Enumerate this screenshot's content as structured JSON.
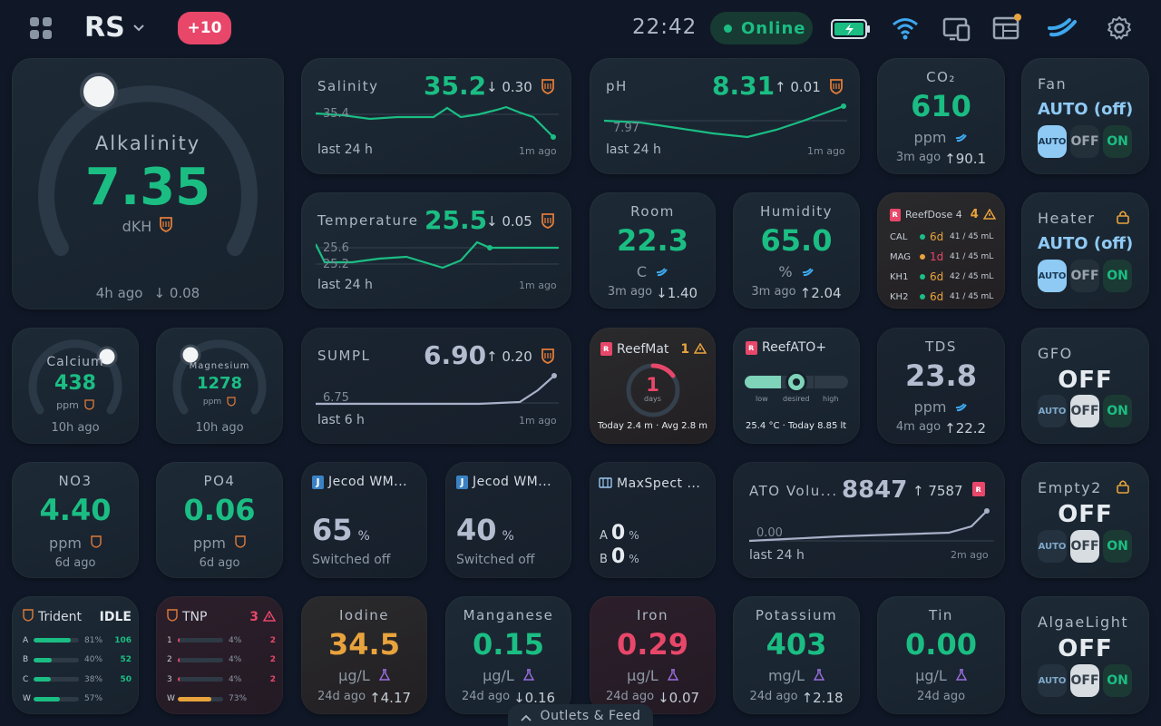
{
  "header": {
    "brand": "RS",
    "badge": "+10",
    "time": "22:42",
    "status": "Online"
  },
  "alk": {
    "label": "Alkalinity",
    "value": "7.35",
    "unit": "dKH",
    "ago": "4h ago",
    "delta": "0.08",
    "gauge_fraction": 0.03
  },
  "salinity": {
    "label": "Salinity",
    "value": "35.2",
    "delta": "0.30",
    "ref": "35.4",
    "period": "last 24 h",
    "ago": "1m ago"
  },
  "ph": {
    "label": "pH",
    "value": "8.31",
    "delta": "0.01",
    "ref": "7.97",
    "period": "last 24 h",
    "ago": "1m ago"
  },
  "co2": {
    "label": "CO₂",
    "value": "610",
    "unit": "ppm",
    "ago": "3m ago",
    "delta": "90.1"
  },
  "fan": {
    "label": "Fan",
    "mode": "AUTO (off)",
    "opts": [
      "AUTO",
      "OFF",
      "ON"
    ]
  },
  "temperature": {
    "label": "Temperature",
    "value": "25.5",
    "delta": "0.05",
    "ref1": "25.6",
    "ref2": "25.2",
    "period": "last 24 h",
    "ago": "1m ago"
  },
  "room": {
    "label": "Room",
    "value": "22.3",
    "unit": "C",
    "ago": "3m ago",
    "delta": "1.40"
  },
  "humidity": {
    "label": "Humidity",
    "value": "65.0",
    "unit": "%",
    "ago": "3m ago",
    "delta": "2.04"
  },
  "reefdose": {
    "title": "ReefDose 4",
    "alerts": "4",
    "rows": [
      {
        "name": "CAL",
        "days": "6d",
        "amt": "41 / 45 mL"
      },
      {
        "name": "MAG",
        "days": "1d",
        "amt": "41 / 45 mL"
      },
      {
        "name": "KH1",
        "days": "6d",
        "amt": "42 / 45 mL"
      },
      {
        "name": "KH2",
        "days": "6d",
        "amt": "41 / 45 mL"
      }
    ]
  },
  "heater": {
    "label": "Heater",
    "mode": "AUTO (off)",
    "opts": [
      "AUTO",
      "OFF",
      "ON"
    ]
  },
  "calcium": {
    "label": "Calcium",
    "value": "438",
    "unit": "ppm",
    "ago": "10h ago",
    "gauge_fraction": 0.9
  },
  "magnesium": {
    "label": "Magnesium",
    "value": "1278",
    "unit": "ppm",
    "ago": "10h ago",
    "gauge_fraction": 0.05
  },
  "sumpl": {
    "label": "SUMPL",
    "value": "6.90",
    "delta": "0.20",
    "ref": "6.75",
    "period": "last 6 h",
    "ago": "1m ago"
  },
  "reefmat": {
    "title": "ReefMat",
    "alerts": "1",
    "days": "1",
    "days_lbl": "days",
    "footer": "Today 2.4 m · Avg 2.8 m",
    "fraction": 0.12
  },
  "reefato": {
    "title": "ReefATO+",
    "lbls": [
      "low",
      "desired",
      "high"
    ],
    "footer": "25.4 °C · Today 8.85 lt"
  },
  "tds": {
    "label": "TDS",
    "value": "23.8",
    "unit": "ppm",
    "ago": "4m ago",
    "delta": "22.2"
  },
  "gfo": {
    "label": "GFO",
    "state": "OFF",
    "opts": [
      "AUTO",
      "OFF",
      "ON"
    ]
  },
  "no3": {
    "label": "NO3",
    "value": "4.40",
    "unit": "ppm",
    "ago": "6d ago"
  },
  "po4": {
    "label": "PO4",
    "value": "0.06",
    "unit": "ppm",
    "ago": "6d ago"
  },
  "jecod1": {
    "title": "Jecod WM...",
    "value": "65",
    "unit": "%",
    "sub": "Switched off"
  },
  "jecod2": {
    "title": "Jecod WM...",
    "value": "40",
    "unit": "%",
    "sub": "Switched off"
  },
  "maxspect": {
    "title": "MaxSpect ...",
    "a_label": "A",
    "a": "0",
    "b_label": "B",
    "b": "0",
    "unit": "%"
  },
  "atovol": {
    "label": "ATO Volu...",
    "value": "8847",
    "delta": "7587",
    "ref": "0.00",
    "period": "last 24 h",
    "ago": "2m ago"
  },
  "empty2": {
    "label": "Empty2",
    "state": "OFF",
    "opts": [
      "AUTO",
      "OFF",
      "ON"
    ]
  },
  "trident": {
    "title": "Trident",
    "state": "IDLE",
    "rows": [
      {
        "k": "A",
        "pct": "81%",
        "n": "106",
        "fill": 0.81
      },
      {
        "k": "B",
        "pct": "40%",
        "n": "52",
        "fill": 0.4
      },
      {
        "k": "C",
        "pct": "38%",
        "n": "50",
        "fill": 0.38
      },
      {
        "k": "W",
        "pct": "57%",
        "n": "",
        "fill": 0.57
      }
    ]
  },
  "tnp": {
    "title": "TNP",
    "alerts": "3",
    "rows": [
      {
        "k": "1",
        "pct": "4%",
        "n": "2",
        "fill": 0.04
      },
      {
        "k": "2",
        "pct": "4%",
        "n": "2",
        "fill": 0.04
      },
      {
        "k": "3",
        "pct": "4%",
        "n": "2",
        "fill": 0.04
      },
      {
        "k": "W",
        "pct": "73%",
        "n": "",
        "fill": 0.73
      }
    ]
  },
  "iodine": {
    "label": "Iodine",
    "value": "34.5",
    "unit": "µg/L",
    "ago": "24d ago",
    "delta": "4.17"
  },
  "manganese": {
    "label": "Manganese",
    "value": "0.15",
    "unit": "µg/L",
    "ago": "24d ago",
    "delta": "0.16"
  },
  "iron": {
    "label": "Iron",
    "value": "0.29",
    "unit": "µg/L",
    "ago": "24d ago",
    "delta": "0.07"
  },
  "potassium": {
    "label": "Potassium",
    "value": "403",
    "unit": "mg/L",
    "ago": "24d ago",
    "delta": "2.18"
  },
  "tin": {
    "label": "Tin",
    "value": "0.00",
    "unit": "µg/L",
    "ago": "24d ago"
  },
  "algaelight": {
    "label": "AlgaeLight",
    "state": "OFF",
    "opts": [
      "AUTO",
      "OFF",
      "ON"
    ]
  },
  "footer": {
    "label": "Outlets & Feed"
  },
  "colors": {
    "green": "#1bbd83",
    "orange": "#e8a33d",
    "red": "#e8476a",
    "blue": "#3b82c4",
    "purple": "#9b6fe0"
  }
}
